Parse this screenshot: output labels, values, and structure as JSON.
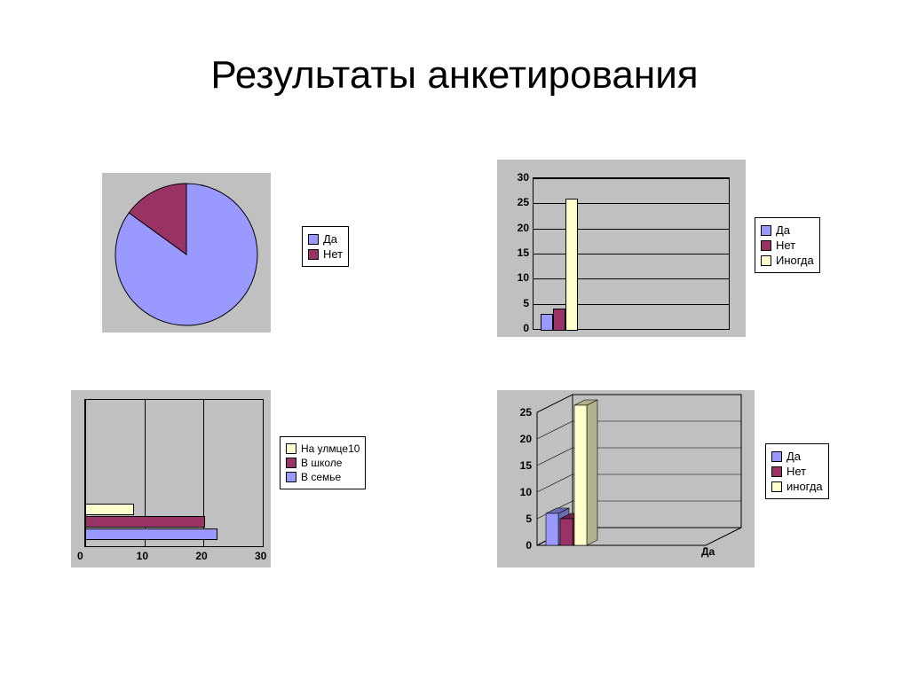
{
  "title": "Результаты анкетирования",
  "colors": {
    "plot_bg": "#c0c0c0",
    "series_blue": "#9999ff",
    "series_red": "#993366",
    "series_yellow": "#ffffcc",
    "grid": "#000000",
    "text": "#000000",
    "white": "#ffffff"
  },
  "pie_chart": {
    "type": "pie",
    "slices": [
      {
        "label": "Да",
        "value": 85,
        "color": "#9999ff"
      },
      {
        "label": "Нет",
        "value": 15,
        "color": "#993366"
      }
    ],
    "legend_items": [
      "Да",
      "Нет"
    ],
    "legend_colors": [
      "#9999ff",
      "#993366"
    ],
    "start_angle_deg": -90
  },
  "bar_top_right": {
    "type": "bar_vertical",
    "categories": [
      ""
    ],
    "series": [
      {
        "label": "Да",
        "value": 3,
        "color": "#9999ff"
      },
      {
        "label": "Нет",
        "value": 4,
        "color": "#993366"
      },
      {
        "label": "Иногда",
        "value": 26,
        "color": "#ffffcc"
      }
    ],
    "ylim": [
      0,
      30
    ],
    "ytick_step": 5,
    "legend_items": [
      "Да",
      "Нет",
      "Иногда"
    ],
    "legend_colors": [
      "#9999ff",
      "#993366",
      "#ffffcc"
    ]
  },
  "bar_bottom_left": {
    "type": "bar_horizontal",
    "series": [
      {
        "label": "В семье",
        "value": 22,
        "color": "#9999ff"
      },
      {
        "label": "В школе",
        "value": 20,
        "color": "#993366"
      },
      {
        "label": "На улмце10",
        "value": 8,
        "color": "#ffffcc"
      }
    ],
    "xlim": [
      0,
      30
    ],
    "xtick_step": 10,
    "legend_items": [
      "На улмце10",
      "В школе",
      "В семье"
    ],
    "legend_colors": [
      "#ffffcc",
      "#993366",
      "#9999ff"
    ]
  },
  "bar_bottom_right": {
    "type": "bar_3d_vertical",
    "x_label": "Да",
    "series": [
      {
        "label": "Да",
        "value": 6,
        "color": "#9999ff"
      },
      {
        "label": "Нет",
        "value": 5,
        "color": "#993366"
      },
      {
        "label": "иногда",
        "value": 26,
        "color": "#ffffcc"
      }
    ],
    "ylim": [
      0,
      25
    ],
    "ytick_step": 5,
    "legend_items": [
      "Да",
      "Нет",
      "иногда"
    ],
    "legend_colors": [
      "#9999ff",
      "#993366",
      "#ffffcc"
    ]
  }
}
